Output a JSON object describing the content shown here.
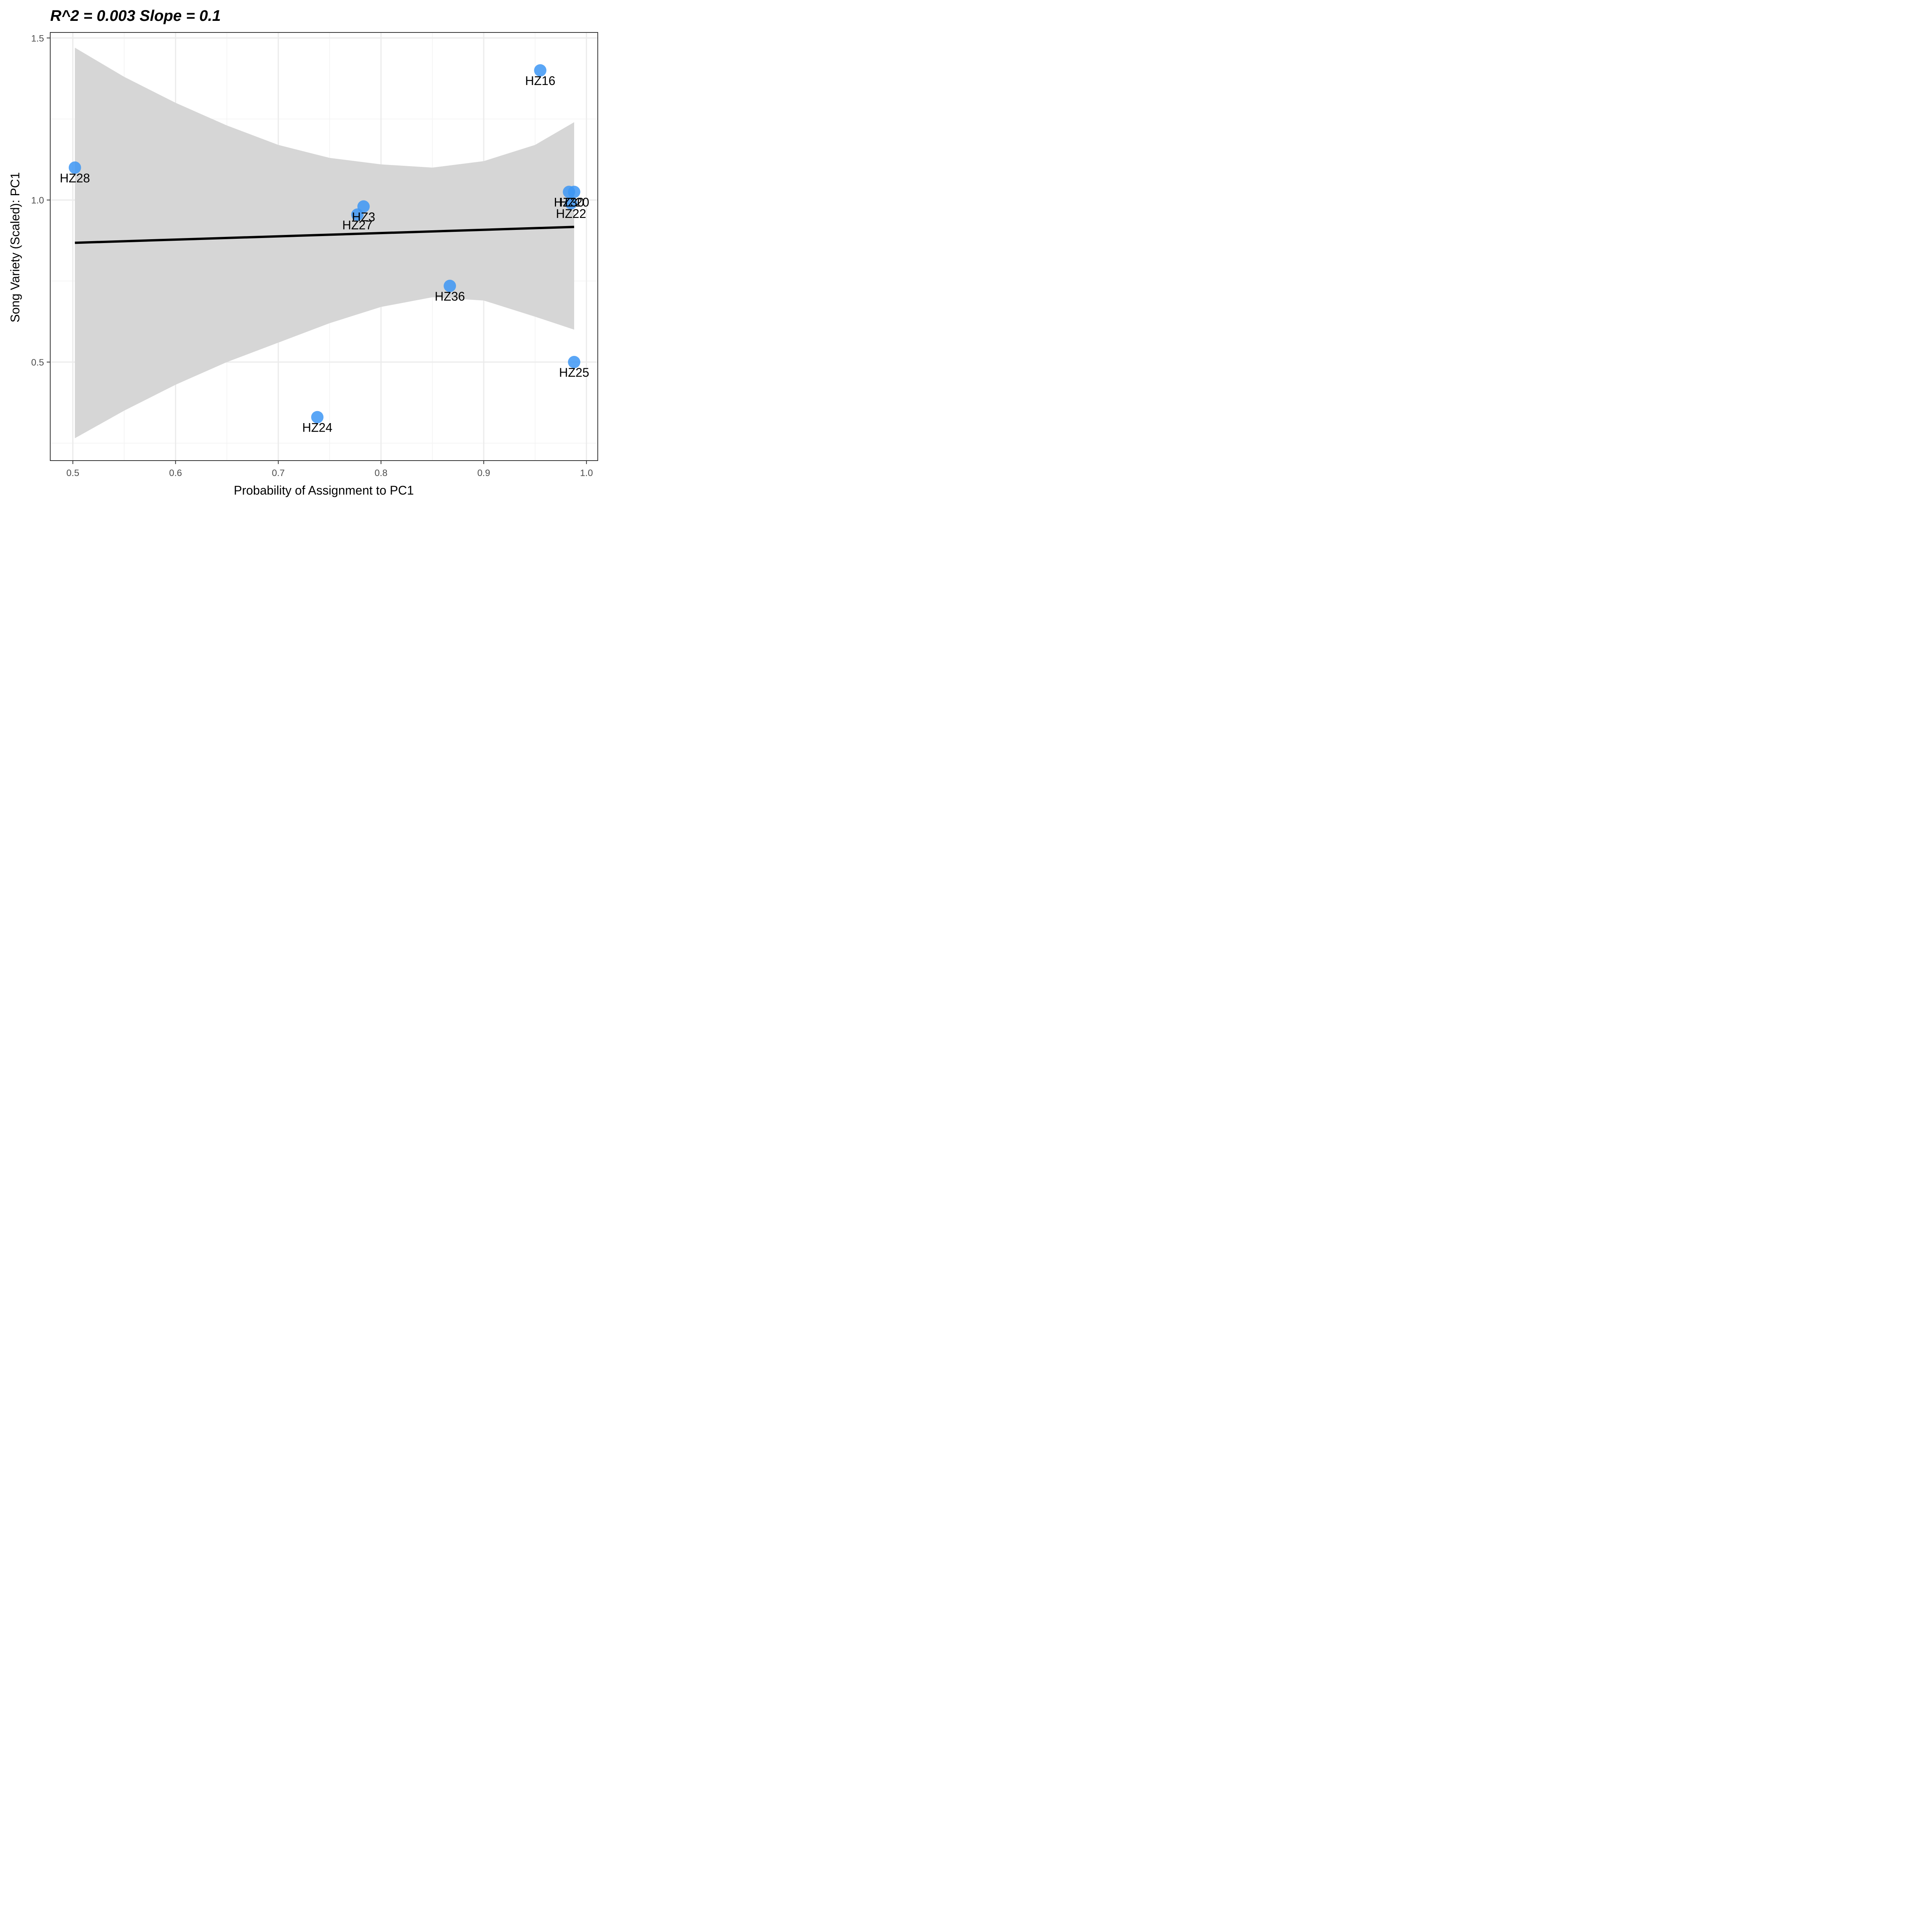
{
  "chart_data": {
    "type": "scatter",
    "title": "R^2 = 0.003   Slope = 0.1",
    "xlabel": "Probability of Assignment to PC1",
    "ylabel": "Song Variety (Scaled): PC1",
    "xlim": [
      0.478,
      1.011
    ],
    "ylim": [
      0.196,
      1.517
    ],
    "x_ticks": [
      0.5,
      0.6,
      0.7,
      0.8,
      0.9,
      1.0
    ],
    "x_tick_labels": [
      "0.5",
      "0.6",
      "0.7",
      "0.8",
      "0.9",
      "1.0"
    ],
    "y_ticks": [
      0.5,
      1.0,
      1.5
    ],
    "y_tick_labels": [
      "0.5",
      "1.0",
      "1.5"
    ],
    "grid": true,
    "points": [
      {
        "label": "HZ28",
        "x": 0.502,
        "y": 1.1
      },
      {
        "label": "HZ3",
        "x": 0.783,
        "y": 0.98
      },
      {
        "label": "HZ27",
        "x": 0.777,
        "y": 0.955
      },
      {
        "label": "HZ24",
        "x": 0.738,
        "y": 0.33
      },
      {
        "label": "HZ36",
        "x": 0.867,
        "y": 0.735
      },
      {
        "label": "HZ16",
        "x": 0.955,
        "y": 1.4
      },
      {
        "label": "HZ30",
        "x": 0.983,
        "y": 1.025
      },
      {
        "label": "HZ20",
        "x": 0.988,
        "y": 1.025
      },
      {
        "label": "HZ22",
        "x": 0.985,
        "y": 0.99
      },
      {
        "label": "HZ25",
        "x": 0.988,
        "y": 0.5
      }
    ],
    "regression": {
      "x": [
        0.502,
        0.988
      ],
      "y": [
        0.868,
        0.917
      ]
    },
    "confidence_band": {
      "x": [
        0.502,
        0.55,
        0.6,
        0.65,
        0.7,
        0.75,
        0.8,
        0.85,
        0.9,
        0.95,
        0.988
      ],
      "upper": [
        1.47,
        1.38,
        1.3,
        1.23,
        1.17,
        1.13,
        1.11,
        1.1,
        1.12,
        1.17,
        1.24
      ],
      "lower": [
        0.265,
        0.35,
        0.43,
        0.5,
        0.56,
        0.62,
        0.67,
        0.7,
        0.69,
        0.64,
        0.6
      ]
    },
    "colors": {
      "point": "#3d97f5",
      "line": "#000000",
      "band": "#d6d6d6",
      "panel_border": "#333333",
      "grid_major": "#ebebeb",
      "grid_minor": "#f2f2f2"
    }
  }
}
